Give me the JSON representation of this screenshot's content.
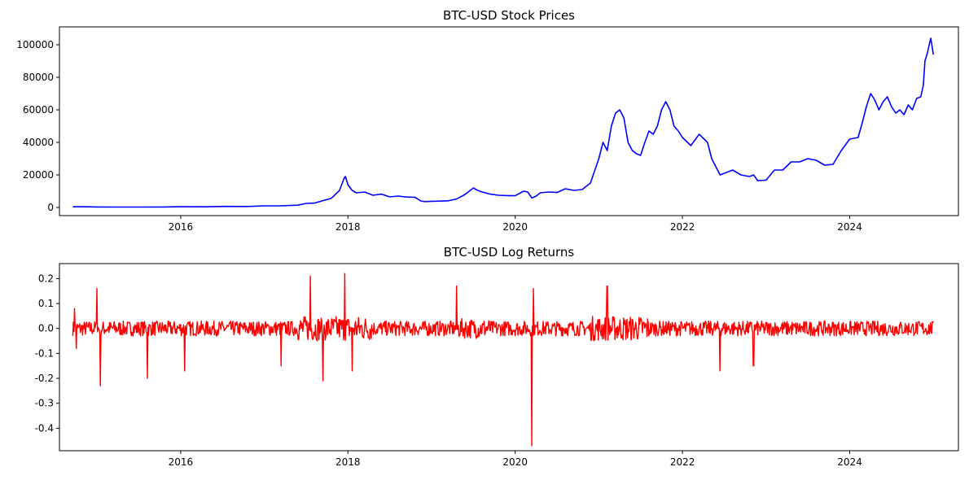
{
  "chart_data": [
    {
      "type": "line",
      "title": "BTC-USD Stock Prices",
      "xlabel": "",
      "ylabel": "",
      "xlim": [
        2014.55,
        2025.3
      ],
      "ylim": [
        -5000,
        111000
      ],
      "xticks": [
        2016,
        2018,
        2020,
        2022,
        2024
      ],
      "yticks": [
        0,
        20000,
        40000,
        60000,
        80000,
        100000
      ],
      "grid": false,
      "color": "#0000ff",
      "series": [
        {
          "x": [
            2014.71,
            2014.9,
            2015.0,
            2015.2,
            2015.5,
            2015.8,
            2016.0,
            2016.3,
            2016.5,
            2016.8,
            2017.0,
            2017.2,
            2017.4,
            2017.5,
            2017.6,
            2017.7,
            2017.8,
            2017.9,
            2017.95,
            2017.97,
            2018.0,
            2018.05,
            2018.1,
            2018.2,
            2018.3,
            2018.4,
            2018.5,
            2018.6,
            2018.7,
            2018.8,
            2018.87,
            2018.92,
            2019.0,
            2019.1,
            2019.2,
            2019.3,
            2019.4,
            2019.5,
            2019.55,
            2019.6,
            2019.7,
            2019.8,
            2019.9,
            2020.0,
            2020.1,
            2020.15,
            2020.2,
            2020.25,
            2020.3,
            2020.4,
            2020.5,
            2020.6,
            2020.7,
            2020.8,
            2020.9,
            2021.0,
            2021.05,
            2021.1,
            2021.15,
            2021.2,
            2021.25,
            2021.3,
            2021.35,
            2021.4,
            2021.45,
            2021.5,
            2021.55,
            2021.6,
            2021.65,
            2021.7,
            2021.75,
            2021.8,
            2021.85,
            2021.9,
            2021.95,
            2022.0,
            2022.1,
            2022.2,
            2022.3,
            2022.35,
            2022.45,
            2022.5,
            2022.6,
            2022.7,
            2022.8,
            2022.85,
            2022.9,
            2023.0,
            2023.1,
            2023.2,
            2023.3,
            2023.4,
            2023.5,
            2023.6,
            2023.7,
            2023.8,
            2023.9,
            2024.0,
            2024.1,
            2024.15,
            2024.2,
            2024.25,
            2024.3,
            2024.35,
            2024.4,
            2024.45,
            2024.5,
            2024.55,
            2024.6,
            2024.65,
            2024.7,
            2024.75,
            2024.8,
            2024.85,
            2024.88,
            2024.9,
            2024.93,
            2024.95,
            2024.97,
            2025.0
          ],
          "y": [
            460,
            380,
            320,
            250,
            240,
            300,
            430,
            420,
            650,
            610,
            1000,
            1050,
            1400,
            2500,
            2700,
            4200,
            5600,
            10500,
            17500,
            19000,
            14000,
            10500,
            9000,
            9500,
            7500,
            8200,
            6500,
            7000,
            6400,
            6300,
            4000,
            3600,
            3800,
            3900,
            4100,
            5200,
            8000,
            12000,
            10500,
            9600,
            8200,
            7500,
            7300,
            7200,
            10000,
            9500,
            5800,
            7000,
            9000,
            9500,
            9200,
            11500,
            10500,
            11000,
            15000,
            30000,
            40000,
            35000,
            50000,
            58000,
            60000,
            55000,
            40000,
            35000,
            33000,
            32000,
            40000,
            47000,
            45000,
            50000,
            60000,
            65000,
            60000,
            50000,
            47000,
            43000,
            38000,
            45000,
            40000,
            30000,
            20000,
            21000,
            23000,
            20000,
            19000,
            20000,
            16500,
            16800,
            23000,
            23000,
            28000,
            28000,
            30000,
            29000,
            26000,
            26500,
            35000,
            42000,
            43000,
            52000,
            62000,
            70000,
            66000,
            60000,
            65000,
            68000,
            62000,
            58000,
            60000,
            57000,
            63000,
            60000,
            67000,
            68000,
            75000,
            90000,
            95000,
            100000,
            104000,
            94000
          ]
        }
      ]
    },
    {
      "type": "line",
      "title": "BTC-USD Log Returns",
      "xlabel": "",
      "ylabel": "",
      "xlim": [
        2014.55,
        2025.3
      ],
      "ylim": [
        -0.49,
        0.26
      ],
      "xticks": [
        2016,
        2018,
        2020,
        2022,
        2024
      ],
      "yticks": [
        0.2,
        0.1,
        0.0,
        -0.1,
        -0.2,
        -0.3,
        -0.4
      ],
      "grid": false,
      "color": "#ff0000",
      "series": [
        {
          "description_of_noise": "",
          "spikes": [
            {
              "x": 2014.73,
              "y": 0.08
            },
            {
              "x": 2014.75,
              "y": -0.08
            },
            {
              "x": 2015.0,
              "y": 0.16
            },
            {
              "x": 2015.04,
              "y": -0.23
            },
            {
              "x": 2015.6,
              "y": -0.2
            },
            {
              "x": 2016.05,
              "y": -0.17
            },
            {
              "x": 2017.2,
              "y": -0.15
            },
            {
              "x": 2017.55,
              "y": 0.21
            },
            {
              "x": 2017.7,
              "y": -0.21
            },
            {
              "x": 2017.96,
              "y": 0.22
            },
            {
              "x": 2018.05,
              "y": -0.17
            },
            {
              "x": 2019.3,
              "y": 0.17
            },
            {
              "x": 2020.2,
              "y": -0.47
            },
            {
              "x": 2020.22,
              "y": 0.16
            },
            {
              "x": 2021.1,
              "y": 0.17
            },
            {
              "x": 2022.45,
              "y": -0.17
            },
            {
              "x": 2022.85,
              "y": -0.15
            }
          ]
        }
      ]
    }
  ]
}
